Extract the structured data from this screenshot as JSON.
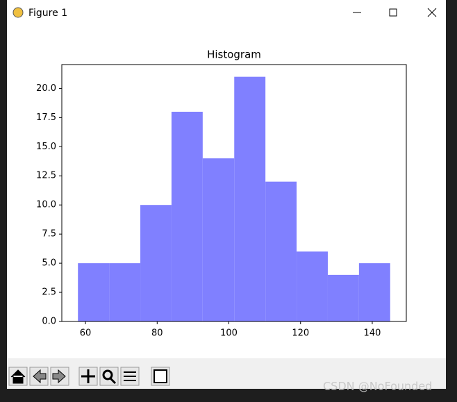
{
  "window": {
    "title": "Figure 1",
    "watermark": "CSDN @NoFounded"
  },
  "chart_data": {
    "type": "histogram",
    "title": "Histogram",
    "bins": [
      57.9,
      66.6,
      75.3,
      84.0,
      92.7,
      101.5,
      110.2,
      118.9,
      127.6,
      136.3,
      145.0
    ],
    "values": [
      5,
      5,
      10,
      18,
      14,
      21,
      12,
      6,
      4,
      5
    ],
    "color": "#8080ff",
    "xlim": [
      53.4,
      149.5
    ],
    "xticks": [
      60,
      80,
      100,
      120,
      140
    ],
    "ylim": [
      0,
      22.05
    ],
    "yticks": [
      {
        "value": 0,
        "label": "0.0"
      },
      {
        "value": 2.5,
        "label": "2.5"
      },
      {
        "value": 5,
        "label": "5.0"
      },
      {
        "value": 7.5,
        "label": "7.5"
      },
      {
        "value": 10,
        "label": "10.0"
      },
      {
        "value": 12.5,
        "label": "12.5"
      },
      {
        "value": 15,
        "label": "15.0"
      },
      {
        "value": 17.5,
        "label": "17.5"
      },
      {
        "value": 20,
        "label": "20.0"
      }
    ],
    "grid": false
  }
}
